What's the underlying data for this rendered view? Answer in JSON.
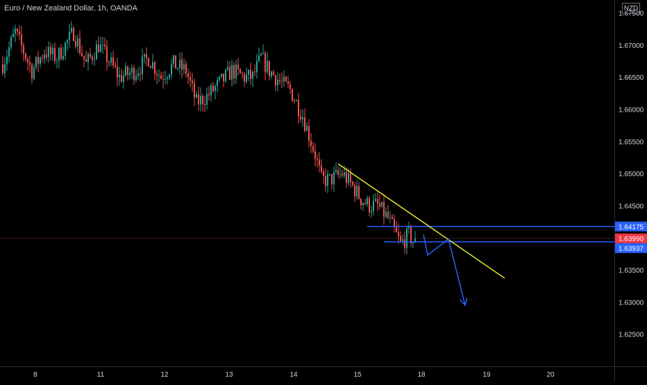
{
  "header": {
    "title": "Euro / New Zealand Dollar, 1h, OANDA",
    "currency_button": "NZD"
  },
  "colors": {
    "background": "#000000",
    "up_candle": "#26a69a",
    "down_candle": "#ef5350",
    "trendline": "#e6e62e",
    "levels": "#2962ff",
    "projection": "#2962ff",
    "axis_text": "#d1d4dc",
    "price_line": "#ef5350",
    "price_tag": "#f23645",
    "level_tag": "#2962ff"
  },
  "chart_data": {
    "type": "candlestick",
    "title": "Euro / New Zealand Dollar, 1h, OANDA",
    "ylim": [
      1.62,
      1.677
    ],
    "y_ticks": [
      1.625,
      1.63,
      1.635,
      1.64,
      1.645,
      1.65,
      1.655,
      1.66,
      1.665,
      1.67,
      1.675
    ],
    "y_tick_labels": [
      "1.62500",
      "1.63000",
      "1.63500",
      "1.64000",
      "1.64500",
      "1.65000",
      "1.65500",
      "1.66000",
      "1.66500",
      "1.67000",
      "1.67500"
    ],
    "x_labels": [
      "8",
      "11",
      "12",
      "13",
      "14",
      "15",
      "18",
      "19",
      "20"
    ],
    "waypoints": [
      [
        0,
        1.667
      ],
      [
        6,
        1.672
      ],
      [
        14,
        1.666
      ],
      [
        20,
        1.669
      ],
      [
        26,
        1.668
      ],
      [
        34,
        1.672
      ],
      [
        40,
        1.667
      ],
      [
        46,
        1.67
      ],
      [
        56,
        1.665
      ],
      [
        64,
        1.666
      ],
      [
        70,
        1.668
      ],
      [
        76,
        1.665
      ],
      [
        82,
        1.667
      ],
      [
        88,
        1.666
      ],
      [
        93,
        1.661
      ],
      [
        98,
        1.662
      ],
      [
        104,
        1.664
      ],
      [
        110,
        1.666
      ],
      [
        116,
        1.665
      ],
      [
        120,
        1.665
      ],
      [
        124,
        1.668
      ],
      [
        128,
        1.666
      ],
      [
        134,
        1.664
      ],
      [
        138,
        1.663
      ],
      [
        141,
        1.661
      ],
      [
        144,
        1.659
      ],
      [
        147,
        1.656
      ],
      [
        150,
        1.653
      ],
      [
        153,
        1.649
      ],
      [
        157,
        1.649
      ],
      [
        163,
        1.65
      ],
      [
        168,
        1.648
      ],
      [
        172,
        1.646
      ],
      [
        176,
        1.645
      ],
      [
        180,
        1.645
      ],
      [
        185,
        1.643
      ],
      [
        188,
        1.641
      ],
      [
        191,
        1.639
      ],
      [
        195,
        1.6405
      ],
      [
        198,
        1.639
      ]
    ],
    "last_price": 1.6399,
    "price_tags": [
      "1.64175",
      "1.63990",
      "1.63937"
    ],
    "annotations": {
      "trendline": {
        "from": [
          161,
          1.6515
        ],
        "to": [
          241,
          1.6337
        ]
      },
      "resistance_level": {
        "value": 1.64175,
        "from": 175
      },
      "support_level": {
        "value": 1.63937,
        "from": 183
      },
      "projection": [
        [
          202,
          1.6405
        ],
        [
          204,
          1.6373
        ],
        [
          214,
          1.6398
        ],
        [
          222,
          1.6295
        ]
      ]
    }
  }
}
